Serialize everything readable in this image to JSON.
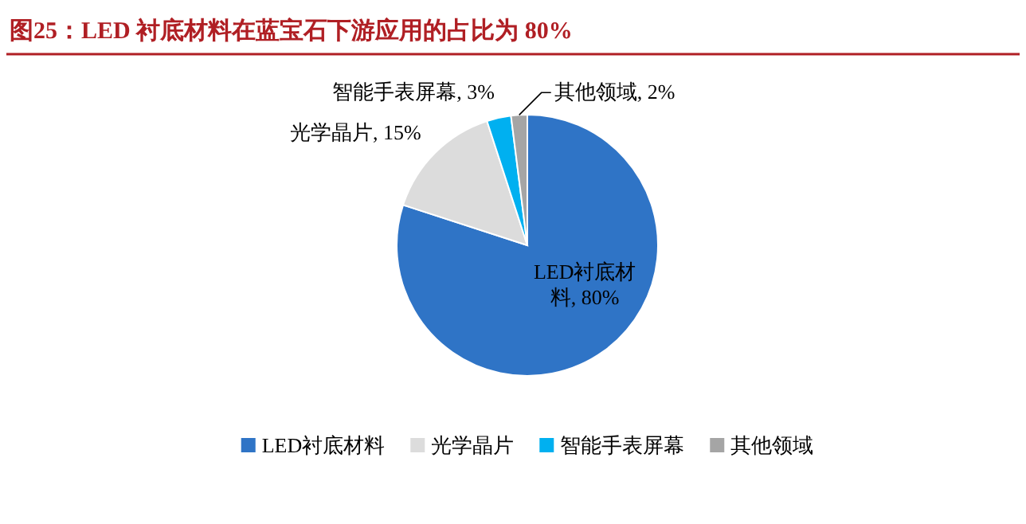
{
  "chart_data": {
    "type": "pie",
    "title": "图25：LED 衬底材料在蓝宝石下游应用的占比为 80%",
    "categories": [
      "LED衬底材料",
      "光学晶片",
      "智能手表屏幕",
      "其他领域"
    ],
    "values": [
      80,
      15,
      3,
      2
    ],
    "value_labels": [
      "LED衬底材料, 80%",
      "光学晶片, 15%",
      "智能手表屏幕, 3%",
      "其他领域, 2%"
    ],
    "colors": [
      "#2f74c6",
      "#dcdcdc",
      "#00b0f0",
      "#a5a5a5"
    ],
    "legend": "bottom"
  }
}
